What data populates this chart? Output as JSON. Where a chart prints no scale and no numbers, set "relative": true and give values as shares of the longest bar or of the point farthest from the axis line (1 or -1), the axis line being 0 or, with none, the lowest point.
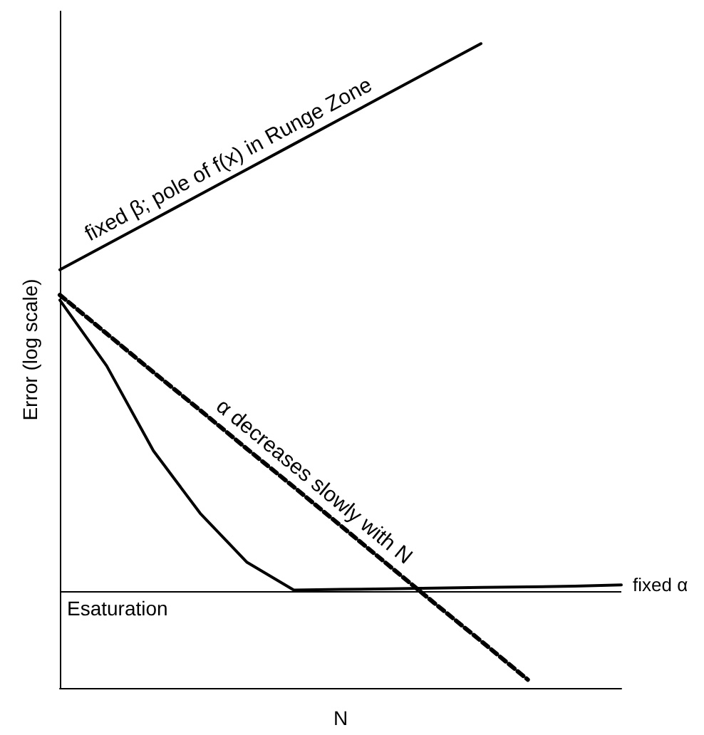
{
  "chart_data": {
    "type": "line",
    "relative": true,
    "xlabel": "N",
    "ylabel": "Error (log scale)",
    "grid": false,
    "marker": "none",
    "categories": [
      null,
      null,
      null,
      null,
      null,
      null,
      null,
      null,
      null,
      null,
      null,
      null,
      null
    ],
    "series": [
      {
        "name": "fixed β; pole of f(x) in Runge Zone",
        "color": "#000000",
        "line_style": "solid",
        "values": [
          0.649,
          0.688,
          0.727,
          0.766,
          0.805,
          0.844,
          0.883,
          0.922,
          0.961,
          1.0,
          null,
          null,
          null
        ]
      },
      {
        "name": "α decreases slowly with N",
        "color": "#000000",
        "line_style": "dashed",
        "values": [
          0.61,
          0.55,
          0.49,
          0.431,
          0.371,
          0.312,
          0.252,
          0.192,
          0.132,
          0.073,
          0.013,
          null,
          null
        ]
      },
      {
        "name": "fixed α",
        "color": "#000000",
        "line_style": "solid",
        "values": [
          0.602,
          0.5,
          0.368,
          0.271,
          0.195,
          0.152,
          0.153,
          0.154,
          0.155,
          0.156,
          0.157,
          0.158,
          0.16
        ]
      }
    ],
    "ref_lines": [
      {
        "axis": "y",
        "value": 0.152,
        "label": "Esaturation",
        "color": "#000000",
        "line_style": "solid"
      }
    ]
  }
}
